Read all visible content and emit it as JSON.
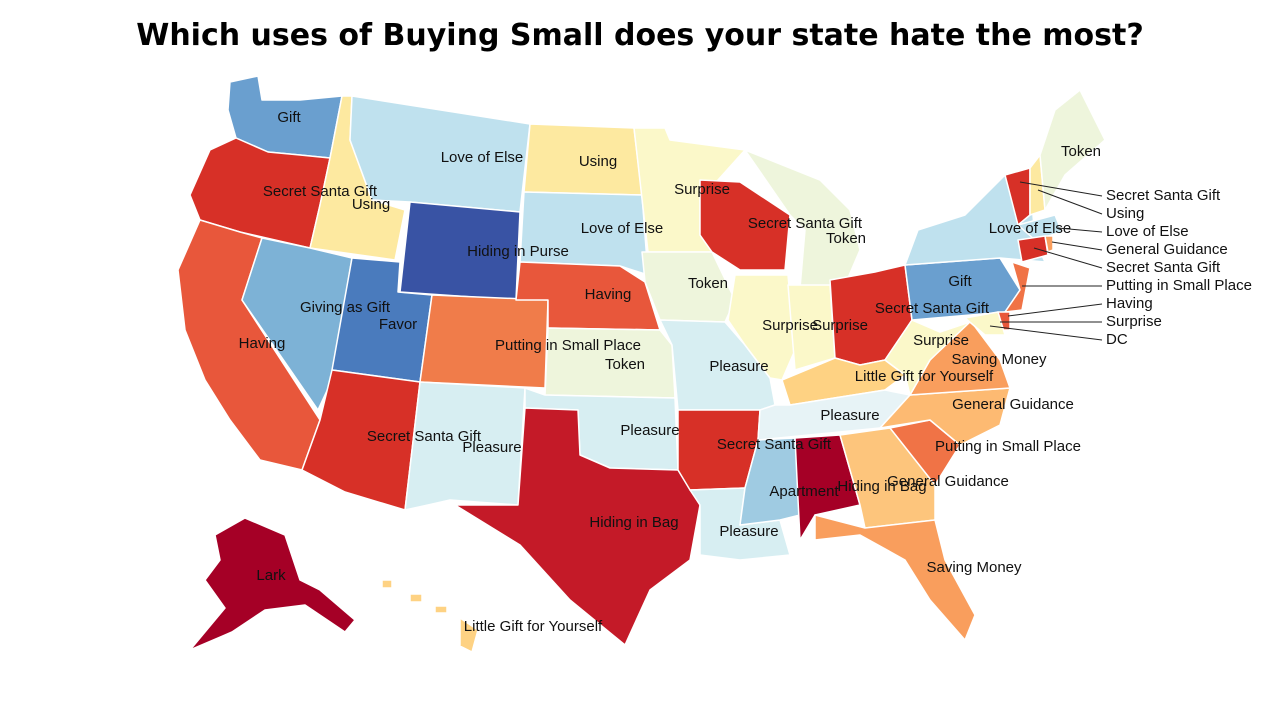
{
  "title": "Which uses of Buying Small does your state hate the most?",
  "palette": {
    "dark_blue": "#3953a4",
    "mid_blue": "#4a7bbd",
    "blue": "#6a9fcf",
    "light_blue": "#9fcbe2",
    "pale_blue": "#bfe1ee",
    "very_pale_blue": "#d7eef2",
    "pale_green": "#eef5dc",
    "pale_yellow": "#fbf8c9",
    "yellow": "#fde9a0",
    "light_orange": "#fdc57c",
    "orange": "#f6955a",
    "red_orange": "#f07346",
    "orange_red": "#e8573b",
    "red": "#d73027",
    "crimson": "#c41a28",
    "dark_red": "#a50026"
  },
  "states": {
    "wa": "Gift",
    "or": "Secret Santa Gift",
    "ca": "Having",
    "id": "Using",
    "nv": "Giving as Gift",
    "ut": "Favor",
    "az": "Secret Santa Gift",
    "mt": "Love of Else",
    "wy": "Hiding in Purse",
    "co": "Putting in Small Place",
    "nm": "Pleasure",
    "nd": "Using",
    "sd": "Love of Else",
    "ne": "Having",
    "ks": "Token",
    "ok": "Pleasure",
    "tx": "Hiding in Bag",
    "mn": "Surprise",
    "ia": "Token",
    "mo": "Pleasure",
    "ar": "Secret Santa Gift",
    "la": "Pleasure",
    "wi": "Secret Santa Gift",
    "mi": "Token",
    "il": "Surprise",
    "in": "Surprise",
    "oh": "Secret Santa Gift",
    "ky": "Little Gift for Yourself",
    "tn": "Pleasure",
    "ms": "Apartment",
    "al": "Hiding in Bag",
    "ga": "General Guidance",
    "fl": "Saving Money",
    "sc": "Putting in Small Place",
    "nc": "General Guidance",
    "va": "Saving Money",
    "wv": "Surprise",
    "pa": "Gift",
    "ny": "Love of Else",
    "me": "Token",
    "ak": "Lark",
    "hi": "Little Gift for Yourself"
  },
  "callouts": [
    "Secret Santa Gift",
    "Using",
    "Love of Else",
    "General Guidance",
    "Secret Santa Gift",
    "Putting in Small Place",
    "Having",
    "Surprise",
    "DC"
  ]
}
